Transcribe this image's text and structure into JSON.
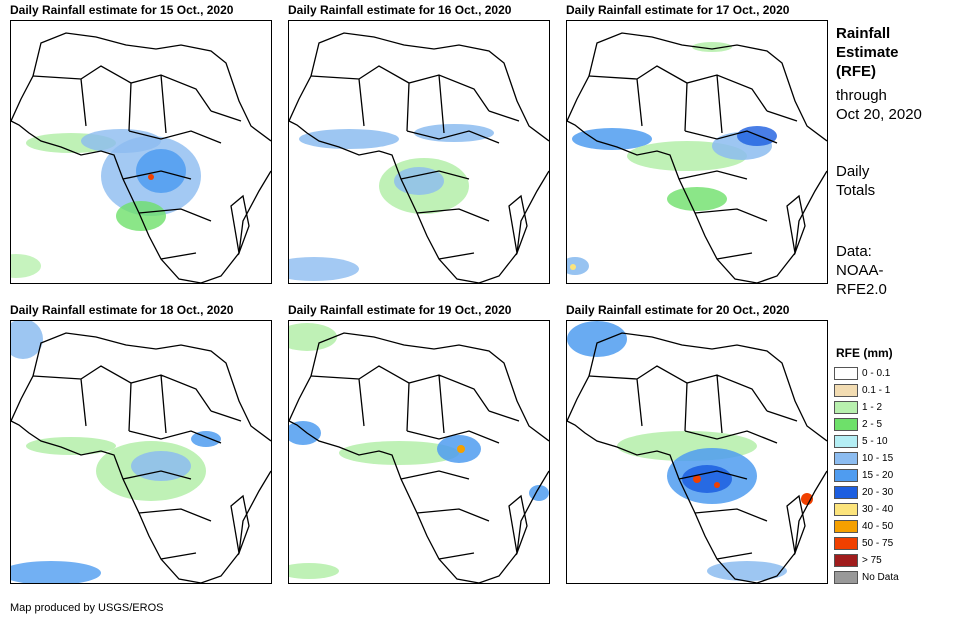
{
  "panels": [
    {
      "title": "Daily Rainfall estimate for 15 Oct., 2020"
    },
    {
      "title": "Daily Rainfall estimate for 16 Oct., 2020"
    },
    {
      "title": "Daily Rainfall estimate for 17 Oct., 2020"
    },
    {
      "title": "Daily Rainfall estimate for 18 Oct., 2020"
    },
    {
      "title": "Daily Rainfall estimate for 19 Oct., 2020"
    },
    {
      "title": "Daily Rainfall estimate for 20 Oct., 2020"
    }
  ],
  "side": {
    "title": [
      "Rainfall",
      "Estimate",
      "(RFE)"
    ],
    "through": [
      "through",
      "Oct 20, 2020"
    ],
    "totals": [
      "Daily",
      "Totals"
    ],
    "source": [
      "Data:",
      "NOAA-",
      "RFE2.0"
    ]
  },
  "legend": {
    "title": "RFE (mm)",
    "items": [
      {
        "label": "0 - 0.1",
        "color": "#ffffff"
      },
      {
        "label": "0.1 - 1",
        "color": "#f2dcb2"
      },
      {
        "label": "1 - 2",
        "color": "#b8f0ae"
      },
      {
        "label": "2 - 5",
        "color": "#6ee06a"
      },
      {
        "label": "5 - 10",
        "color": "#b4eef4"
      },
      {
        "label": "10 - 15",
        "color": "#8cbcf0"
      },
      {
        "label": "15 - 20",
        "color": "#4f9cf0"
      },
      {
        "label": "20 - 30",
        "color": "#1c5ee0"
      },
      {
        "label": "30 - 40",
        "color": "#fce47c"
      },
      {
        "label": "40 - 50",
        "color": "#f5a000"
      },
      {
        "label": "50 - 75",
        "color": "#f04000"
      },
      {
        "label": "> 75",
        "color": "#a01c1c"
      },
      {
        "label": "No Data",
        "color": "#999999"
      }
    ]
  },
  "footer": "Map produced by USGS/EROS"
}
